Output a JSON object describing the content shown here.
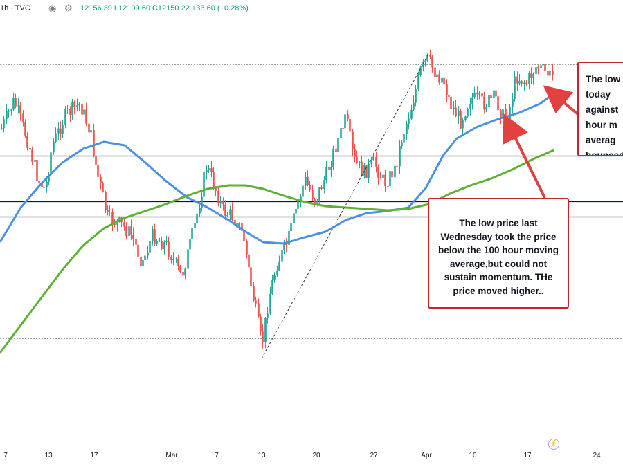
{
  "header": {
    "symbol": "1h · TVC",
    "ohlc": "12156.39  L12109.60  C12150.22  +33.60 (+0.28%)",
    "eye_icon": "eye-icon",
    "settings_icon": "gear-icon",
    "close_icon": "close-icon"
  },
  "colors": {
    "up": "#26a69a",
    "down": "#ef5350",
    "ma100": "#4a90e2",
    "ma200": "#5cb033",
    "callout_border": "#c0262d",
    "arrow": "#e34040",
    "hline": "#131722",
    "dashed": "#333333"
  },
  "callouts": {
    "right": [
      "The low",
      "today",
      "against",
      "hour m",
      "averag",
      "bounced"
    ],
    "bottom": "The low price last Wednesday took the price below the 100 hour moving average,but could not sustain momentum.  THe price moved higher.."
  },
  "axis": {
    "x_ticks": [
      "7",
      "13",
      "17",
      "Mar",
      "7",
      "13",
      "20",
      "27",
      "Apr",
      "10",
      "17",
      "24"
    ],
    "bolt_icon": "lightning-icon"
  },
  "chart_data": {
    "type": "line",
    "description_note": "",
    "x_dates": [
      "Feb 7",
      "Feb 13",
      "Feb 17",
      "Mar 1",
      "Mar 7",
      "Mar 13",
      "Mar 20",
      "Mar 27",
      "Apr 3",
      "Apr 10",
      "Apr 17",
      "Apr 24"
    ],
    "series": [
      {
        "name": "",
        "values": [
          12040,
          12020,
          12000,
          11965,
          11915,
          11840,
          11980,
          11995,
          12130,
          12100,
          12150,
          null
        ]
      },
      {
        "name": "",
        "values": [
          11810,
          11860,
          11935,
          11925,
          11910,
          11880,
          11880,
          11875,
          11885,
          11965,
          12020,
          null
        ]
      }
    ],
    "horizontal_levels": [
      12155,
      12129,
      12045,
      11990,
      11972,
      11937,
      11896,
      11864,
      11825
    ],
    "ylim": [
      11800,
      12180
    ]
  }
}
